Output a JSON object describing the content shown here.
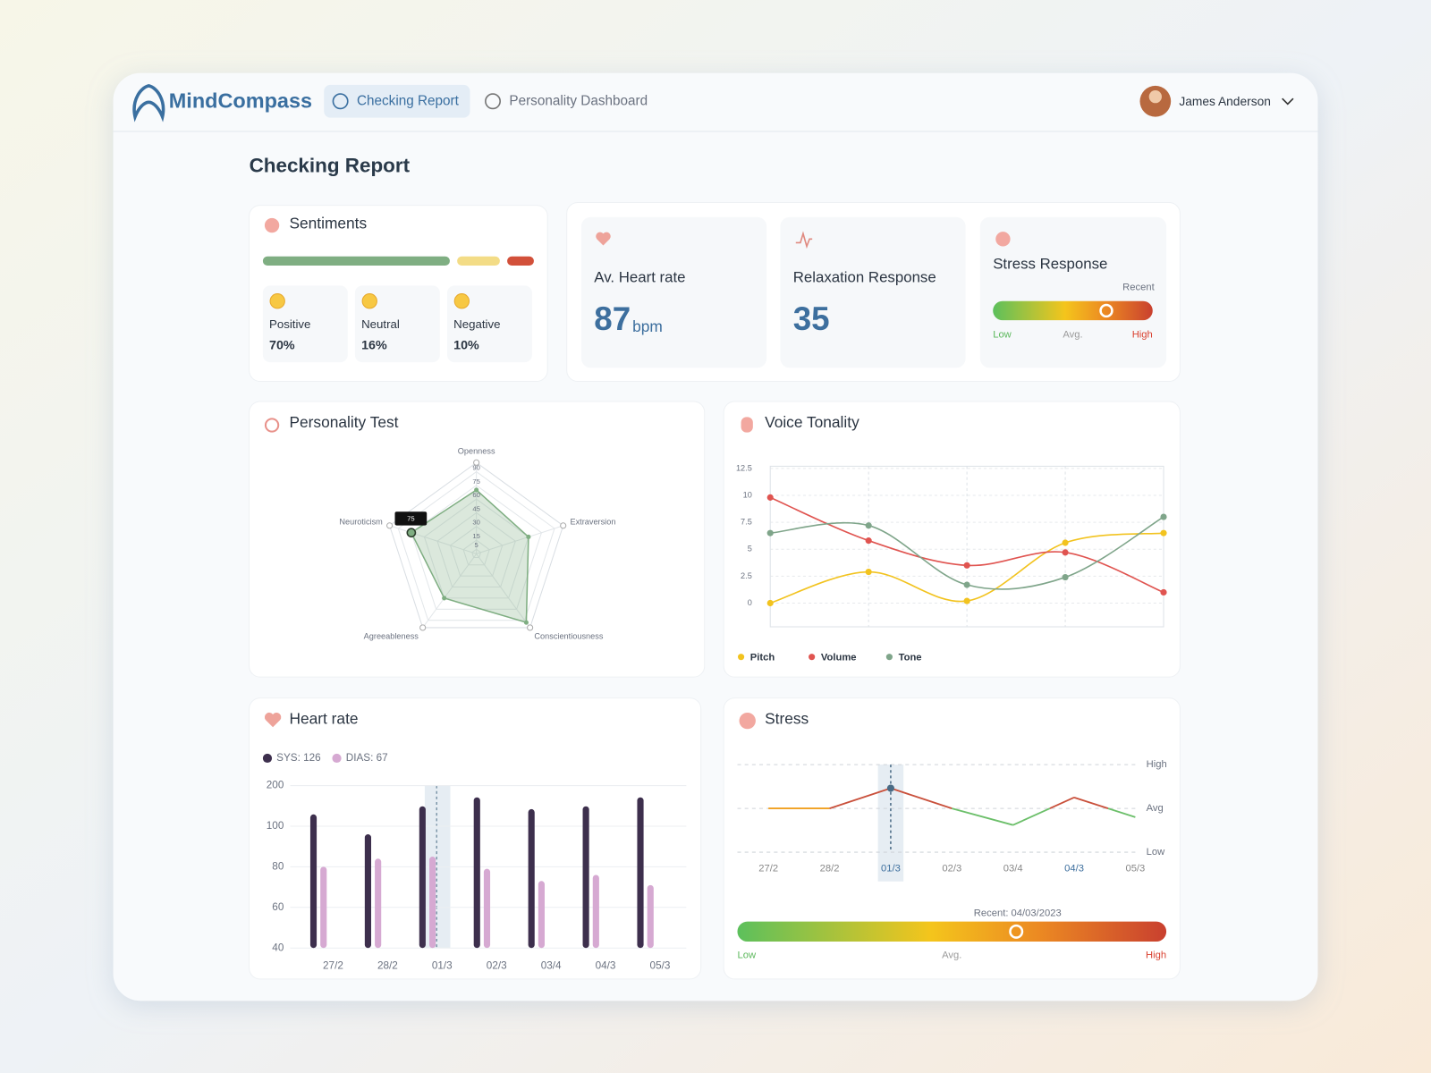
{
  "nav": {
    "brand": "MindCompass",
    "tabs": [
      "Checking Report",
      "Personality Dashboard"
    ],
    "user": "James Anderson"
  },
  "page_title": "Checking Report",
  "sentiments": {
    "title": "Sentiments",
    "categories": [
      "Positive",
      "Neutral",
      "Negative"
    ],
    "values": [
      70,
      16,
      10
    ],
    "value_labels": [
      "70%",
      "16%",
      "10%"
    ],
    "colors": [
      "#7fae82",
      "#f3dc86",
      "#d2503a"
    ]
  },
  "metrics": [
    {
      "title": "Av. Heart rate",
      "value": 87,
      "unit": "bpm"
    },
    {
      "title": "Relaxation Response",
      "value": 35
    }
  ],
  "stress_response": {
    "title": "Stress Response",
    "marker_label": "Recent",
    "scale_labels": [
      "Low",
      "Avg.",
      "High"
    ],
    "value": 71,
    "range": [
      0,
      100
    ]
  },
  "chart_data": [
    {
      "type": "radar",
      "title": "Personality Test",
      "categories": [
        "Openness",
        "Extraversion",
        "Conscientiousness",
        "Agreeableness",
        "Neuroticism"
      ],
      "values": [
        70,
        60,
        93,
        60,
        75
      ],
      "color": "#7fae82",
      "rlim": [
        0,
        100
      ],
      "rticks": [
        5,
        15,
        30,
        45,
        60,
        75,
        90
      ]
    },
    {
      "type": "line",
      "title": "Voice Tonality",
      "categories": [
        null,
        null,
        null,
        null,
        null
      ],
      "ylim": [
        -2.2,
        12.7
      ],
      "yticks": [
        0,
        2.5,
        5,
        7.5,
        10,
        12.5
      ],
      "grid": true,
      "series": [
        {
          "name": "Pitch",
          "color": "#f2c31f",
          "values": [
            0,
            2.9,
            0.2,
            5.6,
            6.5
          ]
        },
        {
          "name": "Volume",
          "color": "#e05450",
          "values": [
            9.8,
            5.8,
            3.5,
            4.7,
            1
          ]
        },
        {
          "name": "Tone",
          "color": "#7fa58a",
          "values": [
            6.5,
            7.2,
            1.7,
            2.4,
            8
          ]
        }
      ]
    },
    {
      "type": "bar",
      "title": "Heart rate",
      "categories": [
        "27/2",
        "28/2",
        "01/3",
        "02/3",
        "03/4",
        "04/3",
        "05/3"
      ],
      "yticks": [
        40,
        60,
        80,
        100,
        200
      ],
      "ylim": [
        40,
        200
      ],
      "grid": true,
      "highlight_index": 2,
      "series": [
        {
          "name": "SYS: 126",
          "color": "#3d2f4d",
          "values": [
            129,
            96,
            149,
            171,
            142,
            149,
            171
          ]
        },
        {
          "name": "DIAS: 67",
          "color": "#d6a9d2",
          "values": [
            80,
            84,
            85,
            79,
            73,
            76,
            71
          ]
        }
      ]
    },
    {
      "type": "level_line",
      "title": "Stress",
      "categories": [
        "27/2",
        "28/2",
        "01/3",
        "02/3",
        "03/4",
        "04/3",
        "05/3"
      ],
      "values": [
        1,
        1,
        1.46,
        1,
        0.62,
        1.25,
        0.8
      ],
      "ylim": [
        0,
        2
      ],
      "yticks": [
        {
          "value": 0,
          "label": "Low"
        },
        {
          "value": 1,
          "label": "Avg"
        },
        {
          "value": 2,
          "label": "High"
        }
      ],
      "highlight_index": 2,
      "colors": {
        "above": "#c9503b",
        "below": "#6cbf6a",
        "at": "#f0a020"
      },
      "gauge": {
        "label": "Recent: 04/03/2023",
        "scale_labels": [
          "Low",
          "Avg.",
          "High"
        ],
        "value": 65,
        "range": [
          0,
          100
        ]
      }
    }
  ]
}
